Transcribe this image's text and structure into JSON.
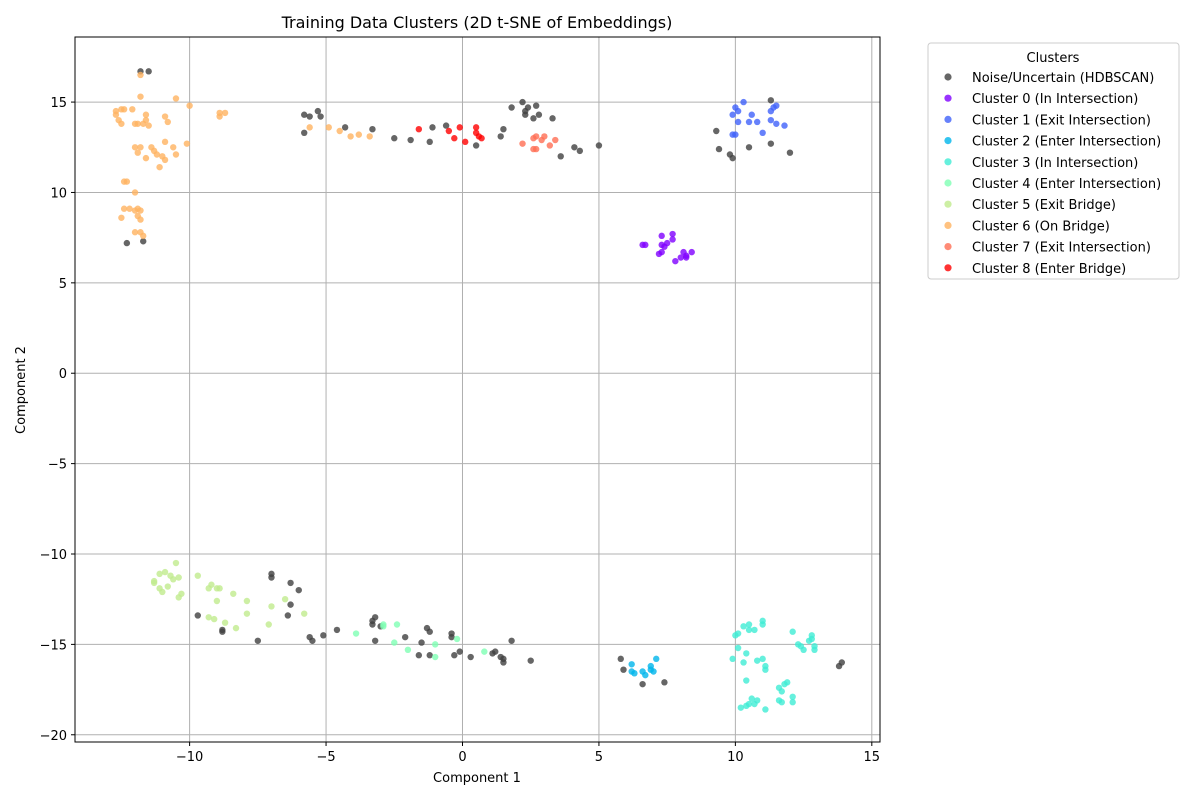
{
  "chart_data": {
    "type": "scatter",
    "title": "Training Data Clusters (2D t-SNE of Embeddings)",
    "xlabel": "Component 1",
    "ylabel": "Component 2",
    "xlim": [
      -14.2,
      15.3
    ],
    "ylim": [
      -20.4,
      18.6
    ],
    "xticks": [
      -10,
      -5,
      0,
      5,
      10,
      15
    ],
    "yticks": [
      -20,
      -15,
      -10,
      -5,
      0,
      5,
      10,
      15
    ],
    "grid": true,
    "legend": {
      "title": "Clusters",
      "placement": "outside-top-right"
    },
    "series": [
      {
        "name": "Noise/Uncertain (HDBSCAN)",
        "color": "#404040",
        "points": [
          [
            -11.8,
            16.7
          ],
          [
            -11.5,
            16.7
          ],
          [
            -12.3,
            7.2
          ],
          [
            -11.7,
            7.3
          ],
          [
            -5.8,
            14.3
          ],
          [
            -5.6,
            14.2
          ],
          [
            -5.3,
            14.5
          ],
          [
            -5.2,
            14.2
          ],
          [
            -5.8,
            13.3
          ],
          [
            -4.3,
            13.6
          ],
          [
            -3.3,
            13.5
          ],
          [
            -2.5,
            13.0
          ],
          [
            -1.9,
            12.9
          ],
          [
            -1.2,
            12.8
          ],
          [
            -1.1,
            13.6
          ],
          [
            -0.6,
            13.7
          ],
          [
            0.5,
            12.6
          ],
          [
            1.4,
            13.1
          ],
          [
            1.5,
            13.5
          ],
          [
            1.8,
            14.7
          ],
          [
            2.2,
            15.0
          ],
          [
            2.3,
            14.5
          ],
          [
            2.4,
            14.7
          ],
          [
            2.3,
            14.3
          ],
          [
            2.7,
            14.8
          ],
          [
            2.8,
            14.3
          ],
          [
            2.6,
            14.1
          ],
          [
            3.3,
            14.1
          ],
          [
            3.6,
            12.0
          ],
          [
            4.1,
            12.5
          ],
          [
            4.3,
            12.3
          ],
          [
            5.0,
            12.6
          ],
          [
            9.3,
            13.4
          ],
          [
            9.4,
            12.4
          ],
          [
            9.8,
            12.1
          ],
          [
            9.9,
            11.9
          ],
          [
            10.5,
            12.5
          ],
          [
            11.3,
            15.1
          ],
          [
            11.3,
            12.7
          ],
          [
            12.0,
            12.2
          ],
          [
            -7.0,
            -11.1
          ],
          [
            -7.0,
            -11.3
          ],
          [
            -6.3,
            -11.6
          ],
          [
            -6.0,
            -12.0
          ],
          [
            -6.3,
            -12.8
          ],
          [
            -6.4,
            -13.4
          ],
          [
            -9.7,
            -13.4
          ],
          [
            -8.8,
            -14.2
          ],
          [
            -8.8,
            -14.3
          ],
          [
            -7.5,
            -14.8
          ],
          [
            -5.6,
            -14.6
          ],
          [
            -5.5,
            -14.8
          ],
          [
            -5.1,
            -14.5
          ],
          [
            -4.6,
            -14.2
          ],
          [
            -3.3,
            -13.7
          ],
          [
            -3.2,
            -13.5
          ],
          [
            -3.3,
            -13.9
          ],
          [
            -3.0,
            -14.0
          ],
          [
            -3.2,
            -14.8
          ],
          [
            -2.1,
            -14.6
          ],
          [
            -1.5,
            -14.9
          ],
          [
            -1.3,
            -14.1
          ],
          [
            -1.2,
            -14.3
          ],
          [
            -0.4,
            -14.4
          ],
          [
            -0.4,
            -14.6
          ],
          [
            -1.6,
            -15.6
          ],
          [
            -1.2,
            -15.6
          ],
          [
            -0.3,
            -15.6
          ],
          [
            -0.1,
            -15.4
          ],
          [
            0.3,
            -15.7
          ],
          [
            1.1,
            -15.5
          ],
          [
            1.2,
            -15.4
          ],
          [
            1.4,
            -15.7
          ],
          [
            1.5,
            -15.8
          ],
          [
            1.5,
            -16.0
          ],
          [
            1.8,
            -14.8
          ],
          [
            2.5,
            -15.9
          ],
          [
            5.8,
            -15.8
          ],
          [
            5.9,
            -16.4
          ],
          [
            6.6,
            -17.2
          ],
          [
            7.4,
            -17.1
          ],
          [
            13.8,
            -16.2
          ],
          [
            13.9,
            -16.0
          ]
        ]
      },
      {
        "name": "Cluster 0 (In Intersection)",
        "color": "#8000ff",
        "points": [
          [
            6.6,
            7.1
          ],
          [
            6.7,
            7.1
          ],
          [
            7.3,
            7.6
          ],
          [
            7.3,
            7.1
          ],
          [
            7.4,
            7.0
          ],
          [
            7.5,
            7.2
          ],
          [
            7.7,
            7.7
          ],
          [
            7.7,
            7.4
          ],
          [
            7.2,
            6.6
          ],
          [
            7.3,
            6.7
          ],
          [
            7.8,
            6.2
          ],
          [
            8.0,
            6.4
          ],
          [
            8.1,
            6.7
          ],
          [
            8.2,
            6.5
          ],
          [
            8.2,
            6.4
          ],
          [
            8.4,
            6.7
          ]
        ]
      },
      {
        "name": "Cluster 1 (Exit Intersection)",
        "color": "#4062fa",
        "points": [
          [
            9.9,
            14.3
          ],
          [
            10.0,
            14.7
          ],
          [
            10.1,
            14.5
          ],
          [
            10.3,
            15.0
          ],
          [
            10.1,
            13.9
          ],
          [
            10.5,
            13.9
          ],
          [
            10.6,
            14.3
          ],
          [
            10.8,
            13.9
          ],
          [
            11.0,
            13.3
          ],
          [
            9.9,
            13.2
          ],
          [
            10.0,
            13.2
          ],
          [
            11.3,
            14.5
          ],
          [
            11.4,
            14.7
          ],
          [
            11.5,
            14.8
          ],
          [
            11.3,
            14.0
          ],
          [
            11.5,
            13.8
          ],
          [
            11.8,
            13.7
          ]
        ]
      },
      {
        "name": "Cluster 2 (Enter Intersection)",
        "color": "#00b5eb",
        "points": [
          [
            6.2,
            -16.1
          ],
          [
            6.2,
            -16.5
          ],
          [
            6.3,
            -16.6
          ],
          [
            6.6,
            -16.5
          ],
          [
            6.7,
            -16.7
          ],
          [
            6.9,
            -16.2
          ],
          [
            6.9,
            -16.4
          ],
          [
            7.0,
            -16.5
          ],
          [
            7.1,
            -15.8
          ]
        ]
      },
      {
        "name": "Cluster 3 (In Intersection)",
        "color": "#40ecd4",
        "points": [
          [
            10.0,
            -14.5
          ],
          [
            10.1,
            -14.4
          ],
          [
            10.3,
            -14.0
          ],
          [
            10.5,
            -13.9
          ],
          [
            10.5,
            -14.2
          ],
          [
            10.7,
            -14.2
          ],
          [
            11.0,
            -13.7
          ],
          [
            11.0,
            -13.9
          ],
          [
            9.9,
            -15.8
          ],
          [
            10.1,
            -15.2
          ],
          [
            10.3,
            -16.0
          ],
          [
            10.4,
            -15.5
          ],
          [
            10.8,
            -15.9
          ],
          [
            11.0,
            -15.8
          ],
          [
            11.1,
            -16.2
          ],
          [
            11.1,
            -16.4
          ],
          [
            10.4,
            -17.0
          ],
          [
            10.6,
            -18.0
          ],
          [
            10.8,
            -18.1
          ],
          [
            10.7,
            -18.3
          ],
          [
            10.5,
            -18.3
          ],
          [
            10.4,
            -18.4
          ],
          [
            10.2,
            -18.5
          ],
          [
            11.1,
            -18.6
          ],
          [
            11.6,
            -18.1
          ],
          [
            11.7,
            -18.2
          ],
          [
            11.6,
            -17.4
          ],
          [
            11.7,
            -17.6
          ],
          [
            11.8,
            -17.2
          ],
          [
            11.9,
            -17.1
          ],
          [
            12.1,
            -17.9
          ],
          [
            12.1,
            -18.2
          ],
          [
            12.1,
            -14.3
          ],
          [
            12.3,
            -15.0
          ],
          [
            12.5,
            -15.3
          ],
          [
            12.7,
            -14.8
          ],
          [
            12.8,
            -14.5
          ],
          [
            12.8,
            -14.7
          ],
          [
            12.9,
            -15.1
          ],
          [
            12.9,
            -15.3
          ],
          [
            12.4,
            -15.1
          ]
        ]
      },
      {
        "name": "Cluster 4 (Enter Intersection)",
        "color": "#80ffb4",
        "points": [
          [
            -3.9,
            -14.4
          ],
          [
            -2.9,
            -14.0
          ],
          [
            -2.9,
            -13.9
          ],
          [
            -2.4,
            -13.9
          ],
          [
            -2.5,
            -14.9
          ],
          [
            -2.0,
            -15.3
          ],
          [
            -1.0,
            -15.0
          ],
          [
            -1.0,
            -15.7
          ],
          [
            -0.2,
            -14.7
          ],
          [
            0.8,
            -15.4
          ]
        ]
      },
      {
        "name": "Cluster 5 (Exit Bridge)",
        "color": "#c0eb8d",
        "points": [
          [
            -10.5,
            -10.5
          ],
          [
            -11.1,
            -11.1
          ],
          [
            -10.9,
            -11.0
          ],
          [
            -10.7,
            -11.2
          ],
          [
            -10.6,
            -11.4
          ],
          [
            -10.4,
            -11.3
          ],
          [
            -11.3,
            -11.6
          ],
          [
            -11.3,
            -11.5
          ],
          [
            -11.1,
            -11.9
          ],
          [
            -11.0,
            -12.1
          ],
          [
            -10.8,
            -11.8
          ],
          [
            -10.3,
            -12.2
          ],
          [
            -10.4,
            -12.4
          ],
          [
            -9.7,
            -11.2
          ],
          [
            -9.2,
            -11.7
          ],
          [
            -9.3,
            -11.9
          ],
          [
            -9.0,
            -11.9
          ],
          [
            -8.9,
            -11.9
          ],
          [
            -9.0,
            -12.6
          ],
          [
            -8.4,
            -12.2
          ],
          [
            -7.9,
            -12.6
          ],
          [
            -9.3,
            -13.5
          ],
          [
            -9.1,
            -13.6
          ],
          [
            -8.7,
            -13.8
          ],
          [
            -8.3,
            -14.1
          ],
          [
            -7.9,
            -13.3
          ],
          [
            -7.0,
            -12.9
          ],
          [
            -6.5,
            -12.5
          ],
          [
            -5.8,
            -13.3
          ],
          [
            -7.1,
            -13.9
          ]
        ]
      },
      {
        "name": "Cluster 6 (On Bridge)",
        "color": "#ffb360",
        "points": [
          [
            -11.8,
            16.5
          ],
          [
            -11.8,
            15.3
          ],
          [
            -12.7,
            14.5
          ],
          [
            -12.7,
            14.3
          ],
          [
            -12.6,
            14.0
          ],
          [
            -12.5,
            13.8
          ],
          [
            -12.5,
            14.6
          ],
          [
            -12.4,
            14.6
          ],
          [
            -12.1,
            14.6
          ],
          [
            -12.0,
            13.8
          ],
          [
            -11.9,
            13.8
          ],
          [
            -11.7,
            13.8
          ],
          [
            -11.6,
            14.0
          ],
          [
            -11.6,
            14.3
          ],
          [
            -11.5,
            13.7
          ],
          [
            -10.5,
            15.2
          ],
          [
            -10.0,
            14.8
          ],
          [
            -10.9,
            14.2
          ],
          [
            -10.8,
            13.9
          ],
          [
            -8.9,
            14.4
          ],
          [
            -8.7,
            14.4
          ],
          [
            -8.9,
            14.2
          ],
          [
            -12.0,
            12.5
          ],
          [
            -11.9,
            12.2
          ],
          [
            -11.8,
            12.5
          ],
          [
            -11.6,
            11.9
          ],
          [
            -11.4,
            12.5
          ],
          [
            -11.3,
            12.3
          ],
          [
            -11.2,
            12.1
          ],
          [
            -11.1,
            11.4
          ],
          [
            -11.0,
            12.0
          ],
          [
            -10.9,
            11.8
          ],
          [
            -10.9,
            12.8
          ],
          [
            -10.6,
            12.5
          ],
          [
            -10.5,
            12.1
          ],
          [
            -10.1,
            12.7
          ],
          [
            -12.4,
            10.6
          ],
          [
            -12.3,
            10.6
          ],
          [
            -12.0,
            10.0
          ],
          [
            -12.4,
            9.1
          ],
          [
            -12.2,
            9.1
          ],
          [
            -12.5,
            8.6
          ],
          [
            -12.0,
            9.0
          ],
          [
            -11.9,
            9.1
          ],
          [
            -11.8,
            9.0
          ],
          [
            -11.9,
            8.7
          ],
          [
            -11.8,
            8.5
          ],
          [
            -12.0,
            7.8
          ],
          [
            -11.8,
            7.8
          ],
          [
            -11.7,
            7.6
          ],
          [
            -5.6,
            13.6
          ],
          [
            -4.9,
            13.6
          ],
          [
            -4.5,
            13.4
          ],
          [
            -4.1,
            13.1
          ],
          [
            -3.8,
            13.2
          ],
          [
            -3.4,
            13.1
          ]
        ]
      },
      {
        "name": "Cluster 7 (Exit Intersection)",
        "color": "#ff6e54",
        "points": [
          [
            2.2,
            12.7
          ],
          [
            2.6,
            12.4
          ],
          [
            2.7,
            12.4
          ],
          [
            2.6,
            13.0
          ],
          [
            2.7,
            13.1
          ],
          [
            2.9,
            12.9
          ],
          [
            3.0,
            13.1
          ],
          [
            3.2,
            12.6
          ],
          [
            3.4,
            12.9
          ]
        ]
      },
      {
        "name": "Cluster 8 (Enter Bridge)",
        "color": "#ff0000",
        "points": [
          [
            -1.6,
            13.5
          ],
          [
            -0.5,
            13.4
          ],
          [
            -0.3,
            13.0
          ],
          [
            -0.1,
            13.6
          ],
          [
            0.1,
            12.8
          ],
          [
            0.5,
            13.6
          ],
          [
            0.5,
            13.3
          ],
          [
            0.6,
            13.1
          ],
          [
            0.7,
            13.0
          ]
        ]
      }
    ]
  }
}
